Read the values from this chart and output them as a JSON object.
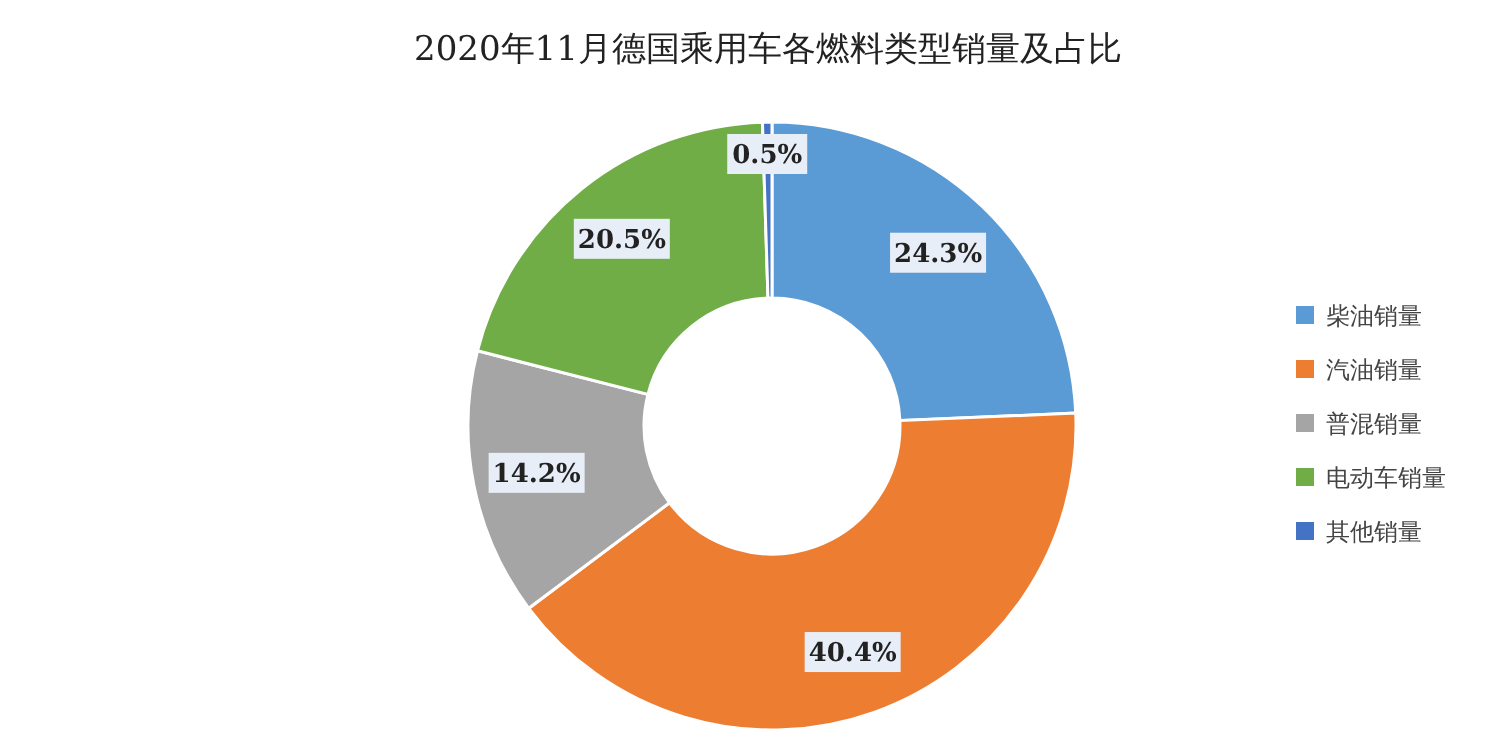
{
  "chart_data": {
    "type": "donut",
    "title": "2020年11月德国乘用车各燃料类型销量及占比",
    "categories": [
      "柴油销量",
      "汽油销量",
      "普混销量",
      "电动车销量",
      "其他销量"
    ],
    "values": [
      24.3,
      40.4,
      14.2,
      20.5,
      0.5
    ],
    "colors": [
      "#5b9bd5",
      "#ed7d31",
      "#a5a5a5",
      "#70ad47",
      "#4472c4"
    ],
    "value_labels": [
      "24.3%",
      "40.4%",
      "14.2%",
      "20.5%",
      "0.5%"
    ],
    "legend": "right"
  }
}
